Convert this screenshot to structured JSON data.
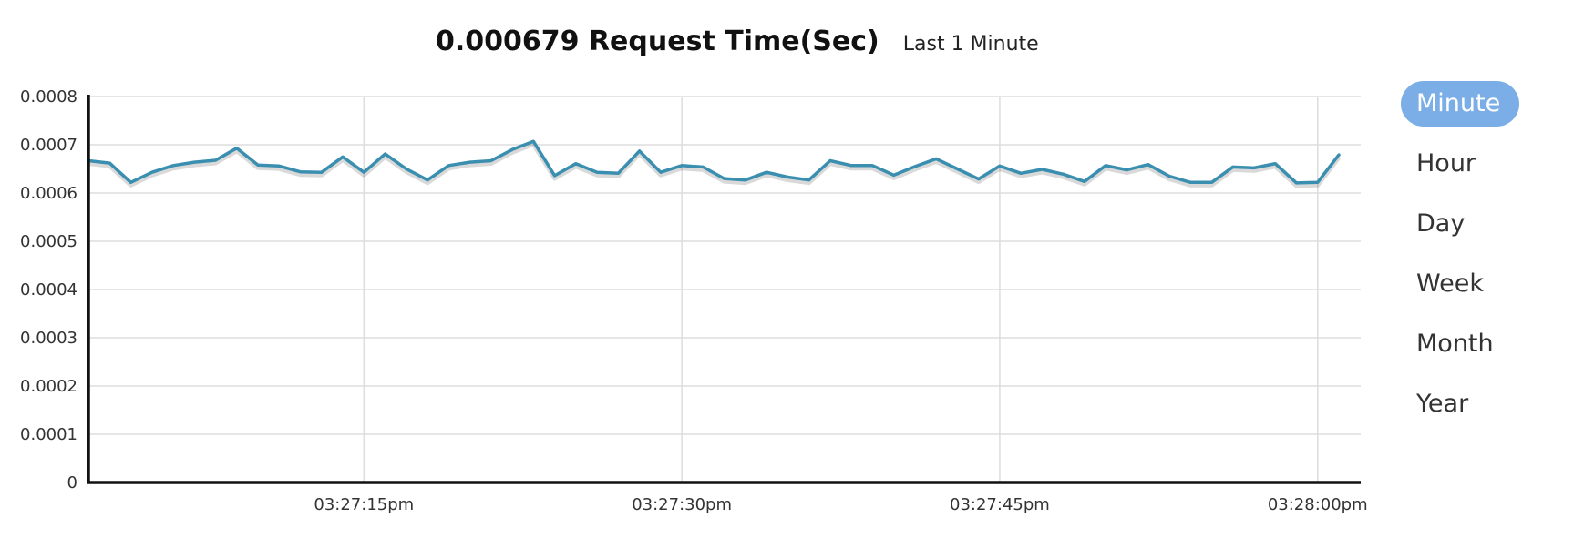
{
  "header": {
    "value_title": "0.000679 Request Time(Sec)",
    "subtitle": "Last 1 Minute"
  },
  "range_menu": {
    "items": [
      {
        "label": "Minute",
        "active": true
      },
      {
        "label": "Hour",
        "active": false
      },
      {
        "label": "Day",
        "active": false
      },
      {
        "label": "Week",
        "active": false
      },
      {
        "label": "Month",
        "active": false
      },
      {
        "label": "Year",
        "active": false
      }
    ]
  },
  "colors": {
    "line": "#3a8fb0",
    "grid": "#dddddd",
    "axis": "#111111",
    "active_pill": "#7baee6"
  },
  "chart_data": {
    "type": "line",
    "title": "0.000679 Request Time(Sec)",
    "subtitle": "Last 1 Minute",
    "xlabel": "",
    "ylabel": "",
    "x_start": "03:27:02pm",
    "x_step_seconds": 1,
    "xlim": [
      "03:27:02pm",
      "03:28:01pm"
    ],
    "x_ticks": [
      "03:27:15pm",
      "03:27:30pm",
      "03:27:45pm",
      "03:28:00pm"
    ],
    "x_tick_seconds": [
      13,
      28,
      43,
      58
    ],
    "ylim": [
      0,
      0.0008
    ],
    "y_ticks": [
      "0",
      "0.0001",
      "0.0002",
      "0.0003",
      "0.0004",
      "0.0005",
      "0.0006",
      "0.0007",
      "0.0008"
    ],
    "grid": true,
    "legend": "none",
    "series": [
      {
        "values": [
          0.000667,
          0.000662,
          0.000622,
          0.000643,
          0.000657,
          0.000664,
          0.000668,
          0.000693,
          0.000658,
          0.000656,
          0.000644,
          0.000643,
          0.000675,
          0.000643,
          0.000681,
          0.00065,
          0.000627,
          0.000657,
          0.000664,
          0.000667,
          0.00069,
          0.000707,
          0.000636,
          0.000661,
          0.000643,
          0.000641,
          0.000687,
          0.000643,
          0.000657,
          0.000654,
          0.00063,
          0.000627,
          0.000643,
          0.000633,
          0.000627,
          0.000667,
          0.000657,
          0.000657,
          0.000637,
          0.000655,
          0.000671,
          0.00065,
          0.000629,
          0.000656,
          0.000641,
          0.000649,
          0.000639,
          0.000624,
          0.000657,
          0.000648,
          0.000659,
          0.000635,
          0.000622,
          0.000622,
          0.000654,
          0.000652,
          0.000661,
          0.000621,
          0.000622,
          0.000679
        ]
      }
    ]
  }
}
